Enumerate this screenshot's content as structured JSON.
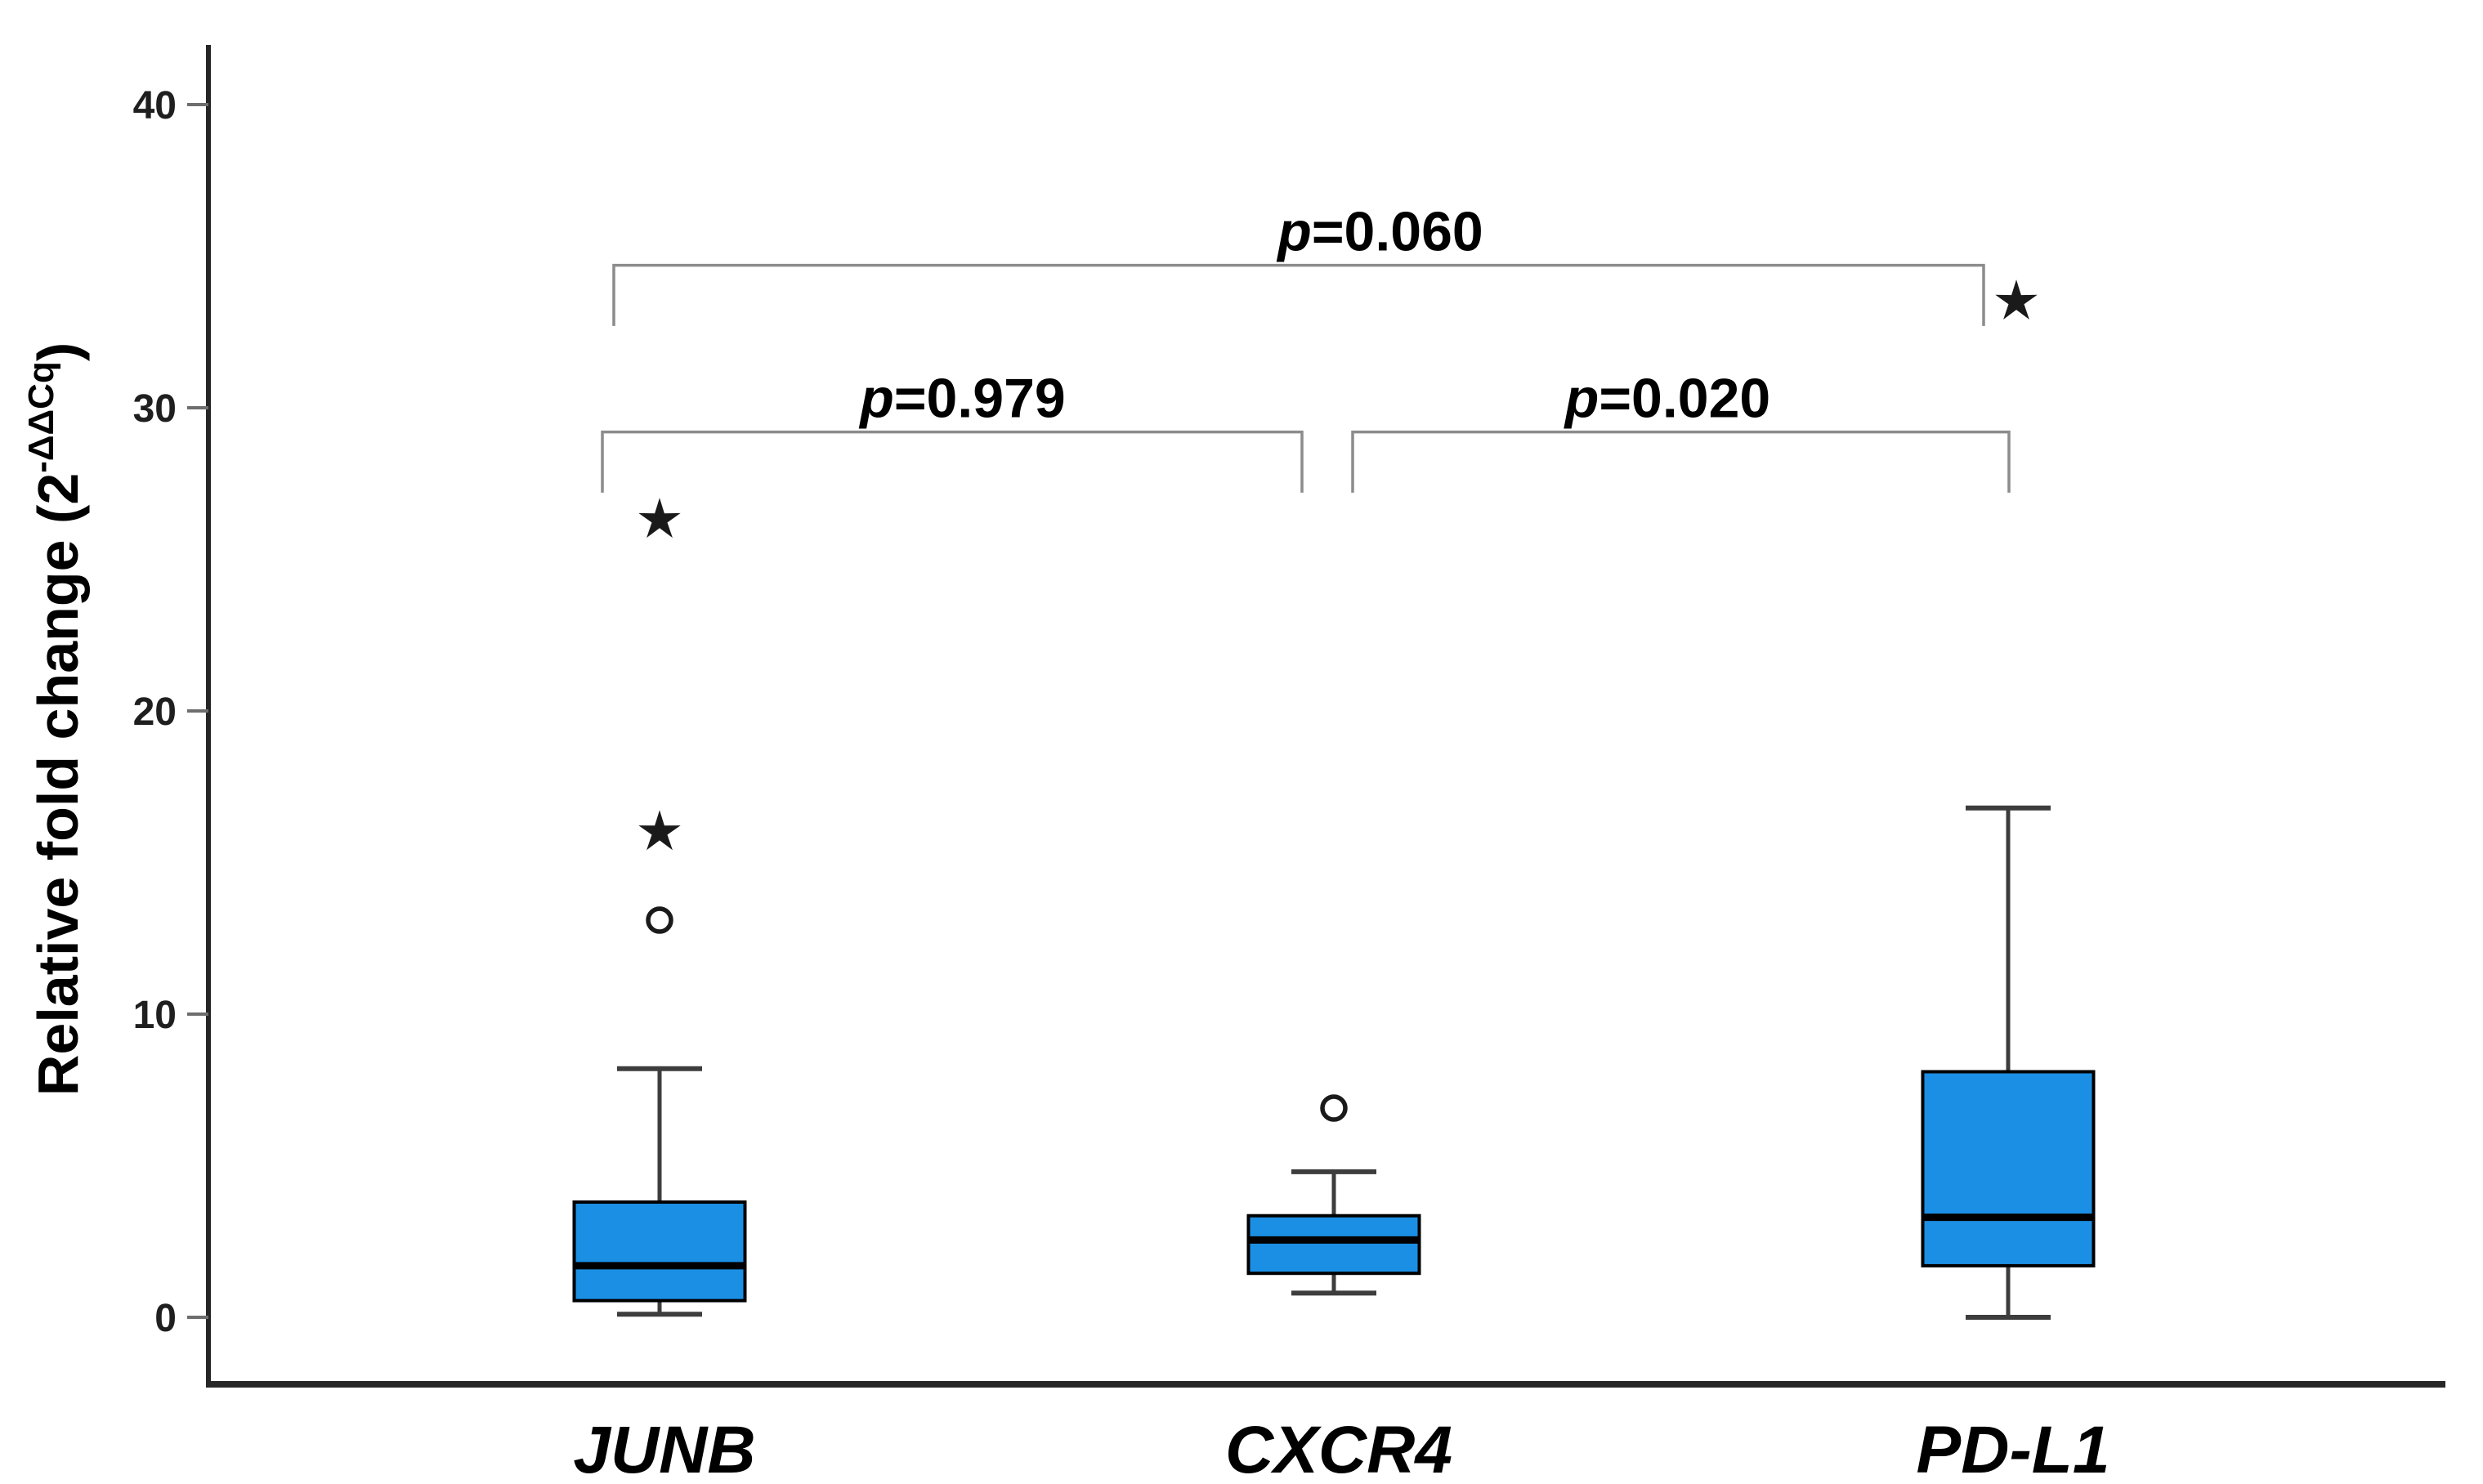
{
  "chart_data": {
    "type": "boxplot",
    "title": "",
    "ylabel": {
      "main": "Relative fold change (2",
      "sup": "-ΔΔCq",
      "close": ")"
    },
    "xlabel": "",
    "yticks": [
      0,
      10,
      20,
      30,
      40
    ],
    "ylim": [
      -2.2,
      42
    ],
    "grid": false,
    "legend": "none",
    "categories": [
      "JUNB",
      "CXCR4",
      "PD-L1"
    ],
    "series": [
      {
        "name": "JUNB",
        "whisker_low": 0.1,
        "q1": 0.55,
        "median": 1.7,
        "q3": 3.8,
        "whisker_high": 8.2,
        "outliers": [
          {
            "value": 13.1,
            "marker": "circle"
          },
          {
            "value": 16.0,
            "marker": "star"
          },
          {
            "value": 26.3,
            "marker": "star"
          }
        ]
      },
      {
        "name": "CXCR4",
        "whisker_low": 0.8,
        "q1": 1.45,
        "median": 2.55,
        "q3": 3.35,
        "whisker_high": 4.8,
        "outliers": [
          {
            "value": 6.9,
            "marker": "circle"
          }
        ]
      },
      {
        "name": "PD-L1",
        "whisker_low": 0.0,
        "q1": 1.7,
        "median": 3.3,
        "q3": 8.1,
        "whisker_high": 16.8,
        "outliers": [
          {
            "value": 33.5,
            "marker": "star"
          }
        ]
      }
    ],
    "comparisons": [
      {
        "from": 0,
        "to": 1,
        "label_p": "p",
        "label_rest": "=0.979",
        "bar_value": 29.2,
        "tick_drop": 2.0,
        "x1": 737,
        "x2": 1593,
        "label_dx": 13
      },
      {
        "from": 1,
        "to": 2,
        "label_p": "p",
        "label_rest": "=0.020",
        "bar_value": 29.2,
        "tick_drop": 2.0,
        "x1": 1655,
        "x2": 2458,
        "label_dx": -16
      },
      {
        "from": 0,
        "to": 2,
        "label_p": "p",
        "label_rest": "=0.060",
        "bar_value": 34.7,
        "tick_drop": 2.0,
        "x1": 751,
        "x2": 2427,
        "label_dx": 100
      }
    ],
    "colors": {
      "box_fill": "#1b8fe4",
      "box_border": "#000000",
      "median": "#000000",
      "whisker": "#3d3d3d",
      "bracket": "#8c8c8c",
      "axis": "#262626",
      "tick": "#6e6e6e",
      "text": "#000000",
      "outlier_stroke": "#1a1a1a",
      "background": "#ffffff"
    }
  }
}
